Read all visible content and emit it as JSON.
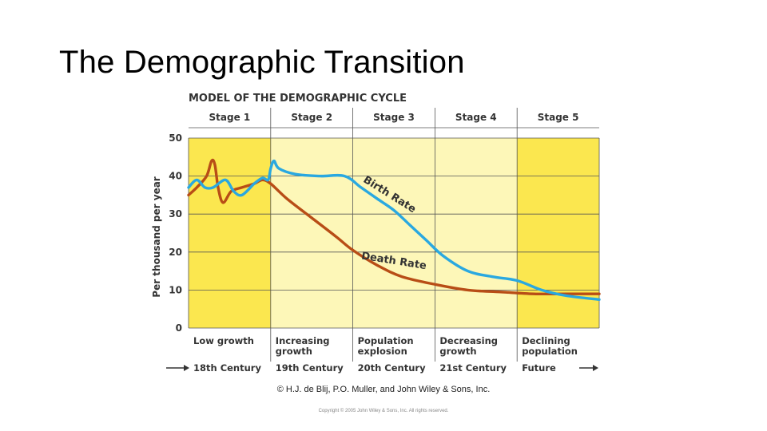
{
  "slide": {
    "title": "The Demographic Transition",
    "credit": "© H.J. de Blij, P.O. Muller, and John Wiley & Sons, Inc.",
    "copyright": "Copyright © 2005 John Wiley & Sons, Inc. All rights reserved."
  },
  "chart_data": {
    "type": "line",
    "title": "MODEL OF THE DEMOGRAPHIC CYCLE",
    "ylabel": "Per thousand per year",
    "ylim": [
      0,
      50
    ],
    "yticks": [
      0,
      10,
      20,
      30,
      40,
      50
    ],
    "xlim": [
      0,
      5
    ],
    "grid": true,
    "stages": [
      {
        "label": "Stage 1",
        "growth": [
          "Low growth"
        ],
        "century": "18th Century",
        "shaded": true
      },
      {
        "label": "Stage 2",
        "growth": [
          "Increasing",
          "growth"
        ],
        "century": "19th Century",
        "shaded": false
      },
      {
        "label": "Stage 3",
        "growth": [
          "Population",
          "explosion"
        ],
        "century": "20th Century",
        "shaded": false
      },
      {
        "label": "Stage 4",
        "growth": [
          "Decreasing",
          "growth"
        ],
        "century": "21st Century",
        "shaded": false
      },
      {
        "label": "Stage 5",
        "growth": [
          "Declining",
          "population"
        ],
        "century": "Future",
        "shaded": true
      }
    ],
    "series": [
      {
        "name": "Birth Rate",
        "color": "#2aa8e0",
        "points": [
          [
            0,
            37
          ],
          [
            0.1,
            39
          ],
          [
            0.2,
            37
          ],
          [
            0.3,
            37
          ],
          [
            0.45,
            39
          ],
          [
            0.55,
            36
          ],
          [
            0.65,
            35
          ],
          [
            0.8,
            38
          ],
          [
            0.9,
            39.5
          ],
          [
            0.97,
            39
          ],
          [
            1.0,
            42
          ],
          [
            1.04,
            44
          ],
          [
            1.1,
            42
          ],
          [
            1.3,
            40.5
          ],
          [
            1.6,
            40
          ],
          [
            1.9,
            40
          ],
          [
            2.1,
            37
          ],
          [
            2.3,
            34
          ],
          [
            2.5,
            31
          ],
          [
            2.7,
            27
          ],
          [
            2.9,
            23
          ],
          [
            3.1,
            19
          ],
          [
            3.4,
            15
          ],
          [
            3.7,
            13.5
          ],
          [
            4.0,
            12.5
          ],
          [
            4.3,
            10
          ],
          [
            4.6,
            8.5
          ],
          [
            5.0,
            7.5
          ]
        ]
      },
      {
        "name": "Death Rate",
        "color": "#b84d16",
        "points": [
          [
            0,
            35
          ],
          [
            0.1,
            37
          ],
          [
            0.22,
            40
          ],
          [
            0.28,
            44
          ],
          [
            0.32,
            43
          ],
          [
            0.36,
            37
          ],
          [
            0.42,
            33
          ],
          [
            0.52,
            36
          ],
          [
            0.65,
            37
          ],
          [
            0.8,
            38
          ],
          [
            0.9,
            39
          ],
          [
            1.0,
            38
          ],
          [
            1.2,
            34
          ],
          [
            1.5,
            29
          ],
          [
            1.8,
            24
          ],
          [
            2.0,
            20.5
          ],
          [
            2.3,
            16.5
          ],
          [
            2.6,
            13.5
          ],
          [
            3.0,
            11.5
          ],
          [
            3.4,
            10
          ],
          [
            3.8,
            9.5
          ],
          [
            4.2,
            9
          ],
          [
            4.6,
            9
          ],
          [
            5.0,
            9
          ]
        ]
      }
    ],
    "annotations": [
      {
        "text": "Birth Rate",
        "series": "Birth Rate"
      },
      {
        "text": "Death Rate",
        "series": "Death Rate"
      }
    ],
    "colors": {
      "shaded_stage": "#fbe74f",
      "plain_stage": "#fdf7b8",
      "grid": "#555555",
      "text": "#333333"
    }
  }
}
